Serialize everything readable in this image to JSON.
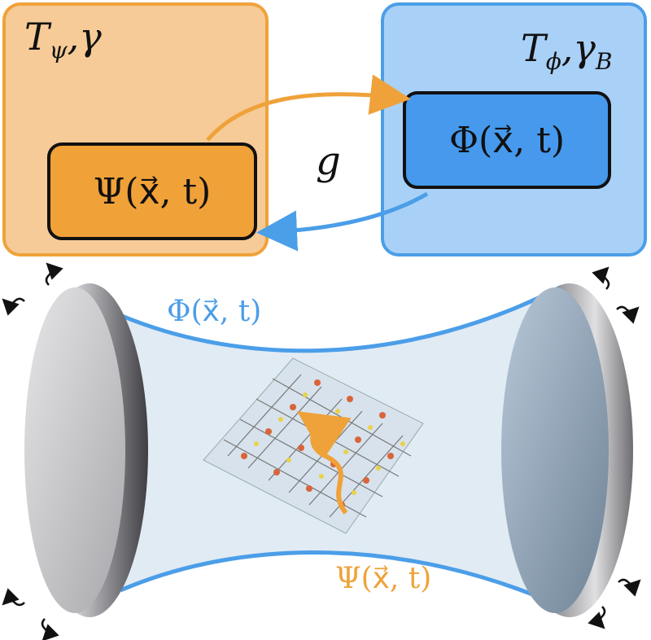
{
  "top_left_panel": {
    "params": "T_ψ,γ",
    "field": "Ψ(x⃗, t)"
  },
  "top_right_panel": {
    "params": "T_ϕ,γ_B",
    "field": "Φ(x⃗, t)"
  },
  "coupling": "g",
  "cavity": {
    "photon_field": "Φ(x⃗, t)",
    "matter_field": "Ψ(x⃗, t)"
  },
  "colors": {
    "orange": "#efa23a",
    "blue": "#4b9ee8",
    "orange_fill": "#f6cb98",
    "blue_fill": "#a9d1f7"
  }
}
